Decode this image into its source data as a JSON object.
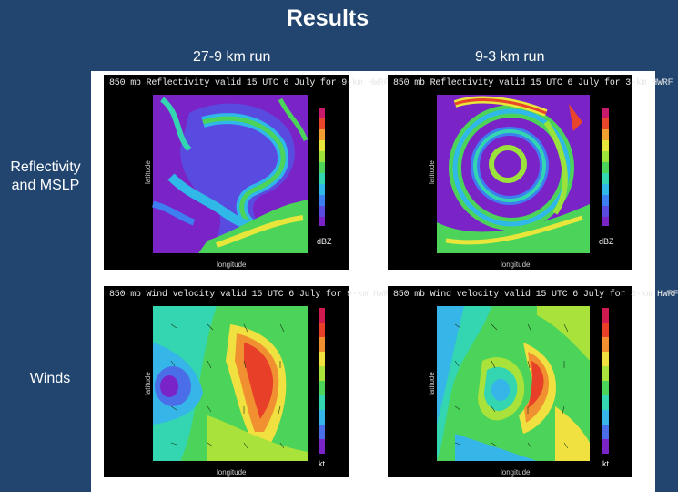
{
  "title": "Results",
  "columns": [
    "27-9 km run",
    "9-3 km run"
  ],
  "rows": [
    "Reflectivity and MSLP",
    "Winds"
  ],
  "panels": [
    {
      "title": "850 mb Reflectivity valid 15 UTC 6 July for 9-km HWRF",
      "unit": "dBZ",
      "xlabel": "longitude",
      "ylabel": "latitude"
    },
    {
      "title": "850 mb Reflectivity valid 15 UTC 6 July for 3-km HWRF",
      "unit": "dBZ",
      "xlabel": "longitude",
      "ylabel": "latitude"
    },
    {
      "title": "850 mb Wind velocity valid 15 UTC 6 July for 9-km HWRF",
      "unit": "kt",
      "xlabel": "longitude",
      "ylabel": "latitude"
    },
    {
      "title": "850 mb Wind velocity valid 15 UTC 6 July for 3-km HWRF",
      "unit": "kt",
      "xlabel": "longitude",
      "ylabel": "latitude"
    }
  ],
  "colors": {
    "background": "#22456f",
    "refl_scale": [
      "#7a24c8",
      "#5a4be0",
      "#3d7ef0",
      "#2fb8e8",
      "#33d6b0",
      "#4cd35a",
      "#9be23a",
      "#e8e63a",
      "#f0a030",
      "#e8452a",
      "#c81a6a"
    ],
    "wind_scale": [
      "#7a24c8",
      "#4a6ee8",
      "#35b5e8",
      "#33d6b0",
      "#4cd35a",
      "#a8e23a",
      "#f0e040",
      "#f09030",
      "#e84028",
      "#d01a50"
    ]
  }
}
